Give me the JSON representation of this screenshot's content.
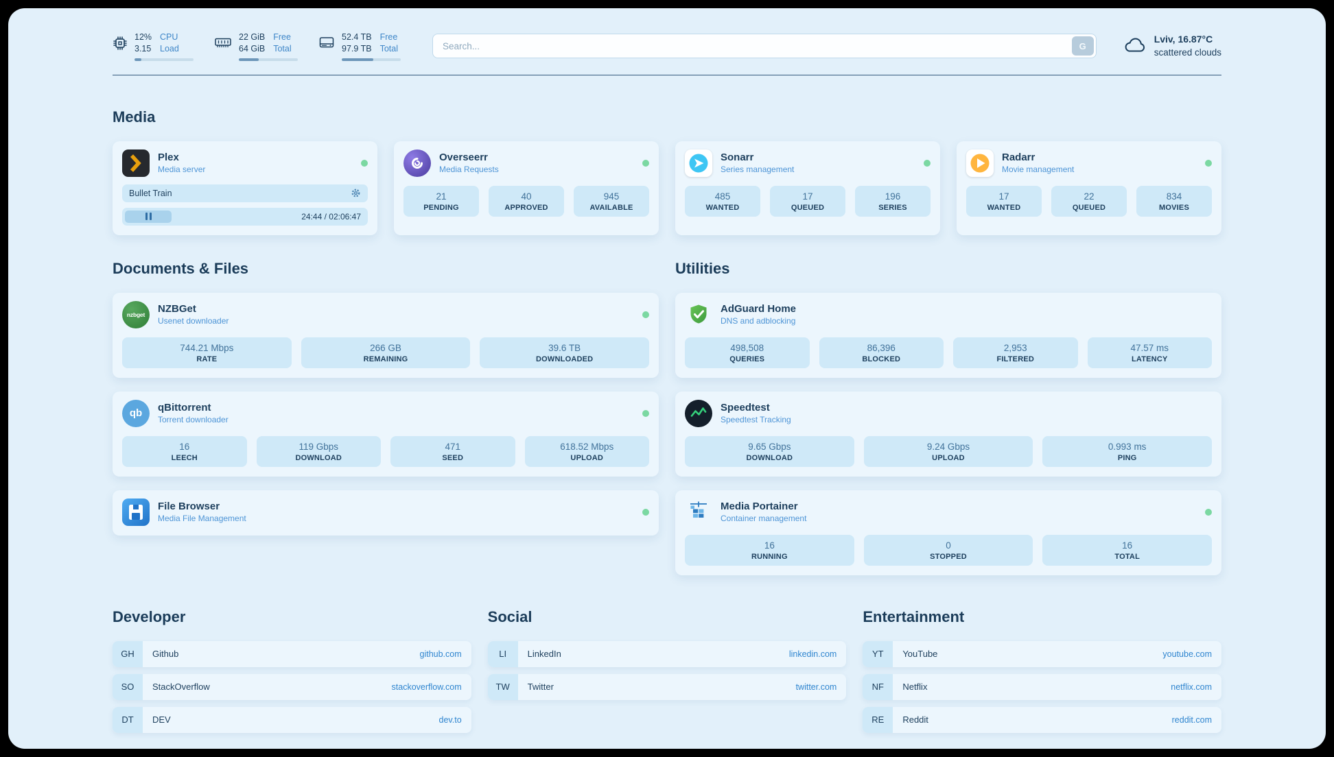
{
  "header": {
    "metrics": [
      {
        "value_top": "12%",
        "value_bottom": "3.15",
        "label_top": "CPU",
        "label_bottom": "Load",
        "progress_pct": 12
      },
      {
        "value_top": "22 GiB",
        "value_bottom": "64 GiB",
        "label_top": "Free",
        "label_bottom": "Total",
        "progress_pct": 34
      },
      {
        "value_top": "52.4 TB",
        "value_bottom": "97.9 TB",
        "label_top": "Free",
        "label_bottom": "Total",
        "progress_pct": 54
      }
    ],
    "search": {
      "placeholder": "Search...",
      "button_label": "G"
    },
    "weather": {
      "location": "Lviv, 16.87°C",
      "condition": "scattered clouds"
    }
  },
  "media": {
    "title": "Media",
    "plex": {
      "name": "Plex",
      "subtitle": "Media server",
      "now_playing": "Bullet Train",
      "time": "24:44 / 02:06:47",
      "progress_pct": 19
    },
    "overseerr": {
      "name": "Overseerr",
      "subtitle": "Media Requests",
      "stats": [
        {
          "value": "21",
          "label": "PENDING"
        },
        {
          "value": "40",
          "label": "APPROVED"
        },
        {
          "value": "945",
          "label": "AVAILABLE"
        }
      ]
    },
    "sonarr": {
      "name": "Sonarr",
      "subtitle": "Series management",
      "stats": [
        {
          "value": "485",
          "label": "WANTED"
        },
        {
          "value": "17",
          "label": "QUEUED"
        },
        {
          "value": "196",
          "label": "SERIES"
        }
      ]
    },
    "radarr": {
      "name": "Radarr",
      "subtitle": "Movie management",
      "stats": [
        {
          "value": "17",
          "label": "WANTED"
        },
        {
          "value": "22",
          "label": "QUEUED"
        },
        {
          "value": "834",
          "label": "MOVIES"
        }
      ]
    }
  },
  "documents": {
    "title": "Documents & Files",
    "nzbget": {
      "name": "NZBGet",
      "subtitle": "Usenet downloader",
      "logo_text": "nzbget",
      "stats": [
        {
          "value": "744.21 Mbps",
          "label": "RATE"
        },
        {
          "value": "266 GB",
          "label": "REMAINING"
        },
        {
          "value": "39.6 TB",
          "label": "DOWNLOADED"
        }
      ]
    },
    "qbittorrent": {
      "name": "qBittorrent",
      "subtitle": "Torrent downloader",
      "logo_text": "qb",
      "stats": [
        {
          "value": "16",
          "label": "LEECH"
        },
        {
          "value": "119 Gbps",
          "label": "DOWNLOAD"
        },
        {
          "value": "471",
          "label": "SEED"
        },
        {
          "value": "618.52 Mbps",
          "label": "UPLOAD"
        }
      ]
    },
    "filebrowser": {
      "name": "File Browser",
      "subtitle": "Media File Management"
    }
  },
  "utilities": {
    "title": "Utilities",
    "adguard": {
      "name": "AdGuard Home",
      "subtitle": "DNS and adblocking",
      "stats": [
        {
          "value": "498,508",
          "label": "QUERIES"
        },
        {
          "value": "86,396",
          "label": "BLOCKED"
        },
        {
          "value": "2,953",
          "label": "FILTERED"
        },
        {
          "value": "47.57 ms",
          "label": "LATENCY"
        }
      ]
    },
    "speedtest": {
      "name": "Speedtest",
      "subtitle": "Speedtest Tracking",
      "stats": [
        {
          "value": "9.65 Gbps",
          "label": "DOWNLOAD"
        },
        {
          "value": "9.24 Gbps",
          "label": "UPLOAD"
        },
        {
          "value": "0.993 ms",
          "label": "PING"
        }
      ]
    },
    "portainer": {
      "name": "Media Portainer",
      "subtitle": "Container management",
      "stats": [
        {
          "value": "16",
          "label": "RUNNING"
        },
        {
          "value": "0",
          "label": "STOPPED"
        },
        {
          "value": "16",
          "label": "TOTAL"
        }
      ]
    }
  },
  "bookmarks": [
    {
      "title": "Developer",
      "items": [
        {
          "abbr": "GH",
          "name": "Github",
          "url": "github.com"
        },
        {
          "abbr": "SO",
          "name": "StackOverflow",
          "url": "stackoverflow.com"
        },
        {
          "abbr": "DT",
          "name": "DEV",
          "url": "dev.to"
        }
      ]
    },
    {
      "title": "Social",
      "items": [
        {
          "abbr": "LI",
          "name": "LinkedIn",
          "url": "linkedin.com"
        },
        {
          "abbr": "TW",
          "name": "Twitter",
          "url": "twitter.com"
        }
      ]
    },
    {
      "title": "Entertainment",
      "items": [
        {
          "abbr": "YT",
          "name": "YouTube",
          "url": "youtube.com"
        },
        {
          "abbr": "NF",
          "name": "Netflix",
          "url": "netflix.com"
        },
        {
          "abbr": "RE",
          "name": "Reddit",
          "url": "reddit.com"
        }
      ]
    }
  ],
  "colors": {
    "accent": "#2F85CF",
    "status_online": "#7BD8A2",
    "chip": "#CFE9F8"
  }
}
